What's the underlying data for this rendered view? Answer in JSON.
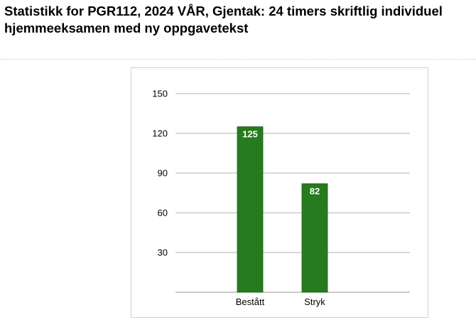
{
  "page": {
    "title_line1": "Statistikk for PGR112, 2024 VÅR, Gjentak: 24 timers skriftlig individuel",
    "title_line2": "hjemmeeksamen med ny oppgavetekst"
  },
  "chart_data": {
    "type": "bar",
    "title": "",
    "xlabel": "",
    "ylabel": "",
    "categories": [
      "Bestått",
      "Stryk"
    ],
    "series": [
      {
        "values": [
          125,
          82
        ],
        "color": "#267b1e"
      }
    ],
    "data_labels": [
      "125",
      "82"
    ],
    "ylim": [
      0,
      150
    ],
    "yticks": [
      30,
      60,
      90,
      120,
      150
    ],
    "ytick_labels": [
      "30",
      "60",
      "90",
      "120",
      "150"
    ],
    "grid": true,
    "legend": "none"
  }
}
